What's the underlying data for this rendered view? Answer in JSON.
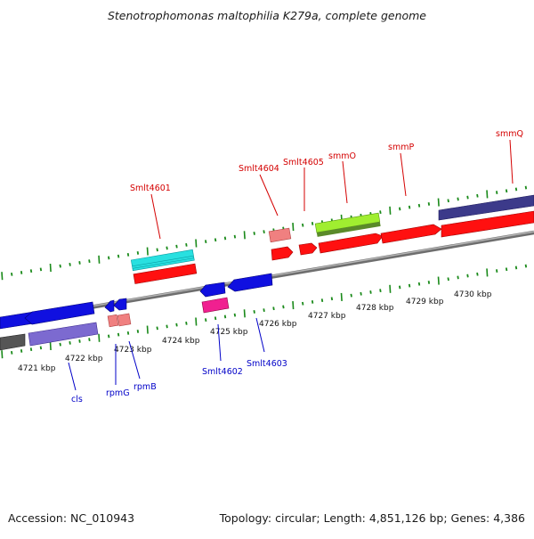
{
  "header": {
    "title": "Stenotrophomonas maltophilia K279a, complete genome"
  },
  "footer": {
    "accession": "Accession: NC_010943",
    "summary": "Topology: circular; Length: 4,851,126 bp; Genes: 4,386"
  },
  "colors": {
    "backbone": "#8a8a8a",
    "forward_cds": "#ff0000",
    "reverse_cds": "#1010e0",
    "forward_tick": "#1a8a1a",
    "reverse_tick": "#1a8a1a",
    "forward_label": "#d40000",
    "reverse_label": "#0000c8"
  },
  "map": {
    "kbp_labels": [
      "4721 kbp",
      "4722 kbp",
      "4723 kbp",
      "4724 kbp",
      "4725 kbp",
      "4726 kbp",
      "4727 kbp",
      "4728 kbp",
      "4729 kbp",
      "4730 kbp"
    ],
    "forward_genes": [
      "Smlt4601",
      "Smlt4604",
      "Smlt4605",
      "smmO",
      "smmP",
      "smmQ"
    ],
    "reverse_genes": [
      "cls",
      "rpmG",
      "rpmB",
      "Smlt4602",
      "Smlt4603"
    ]
  }
}
